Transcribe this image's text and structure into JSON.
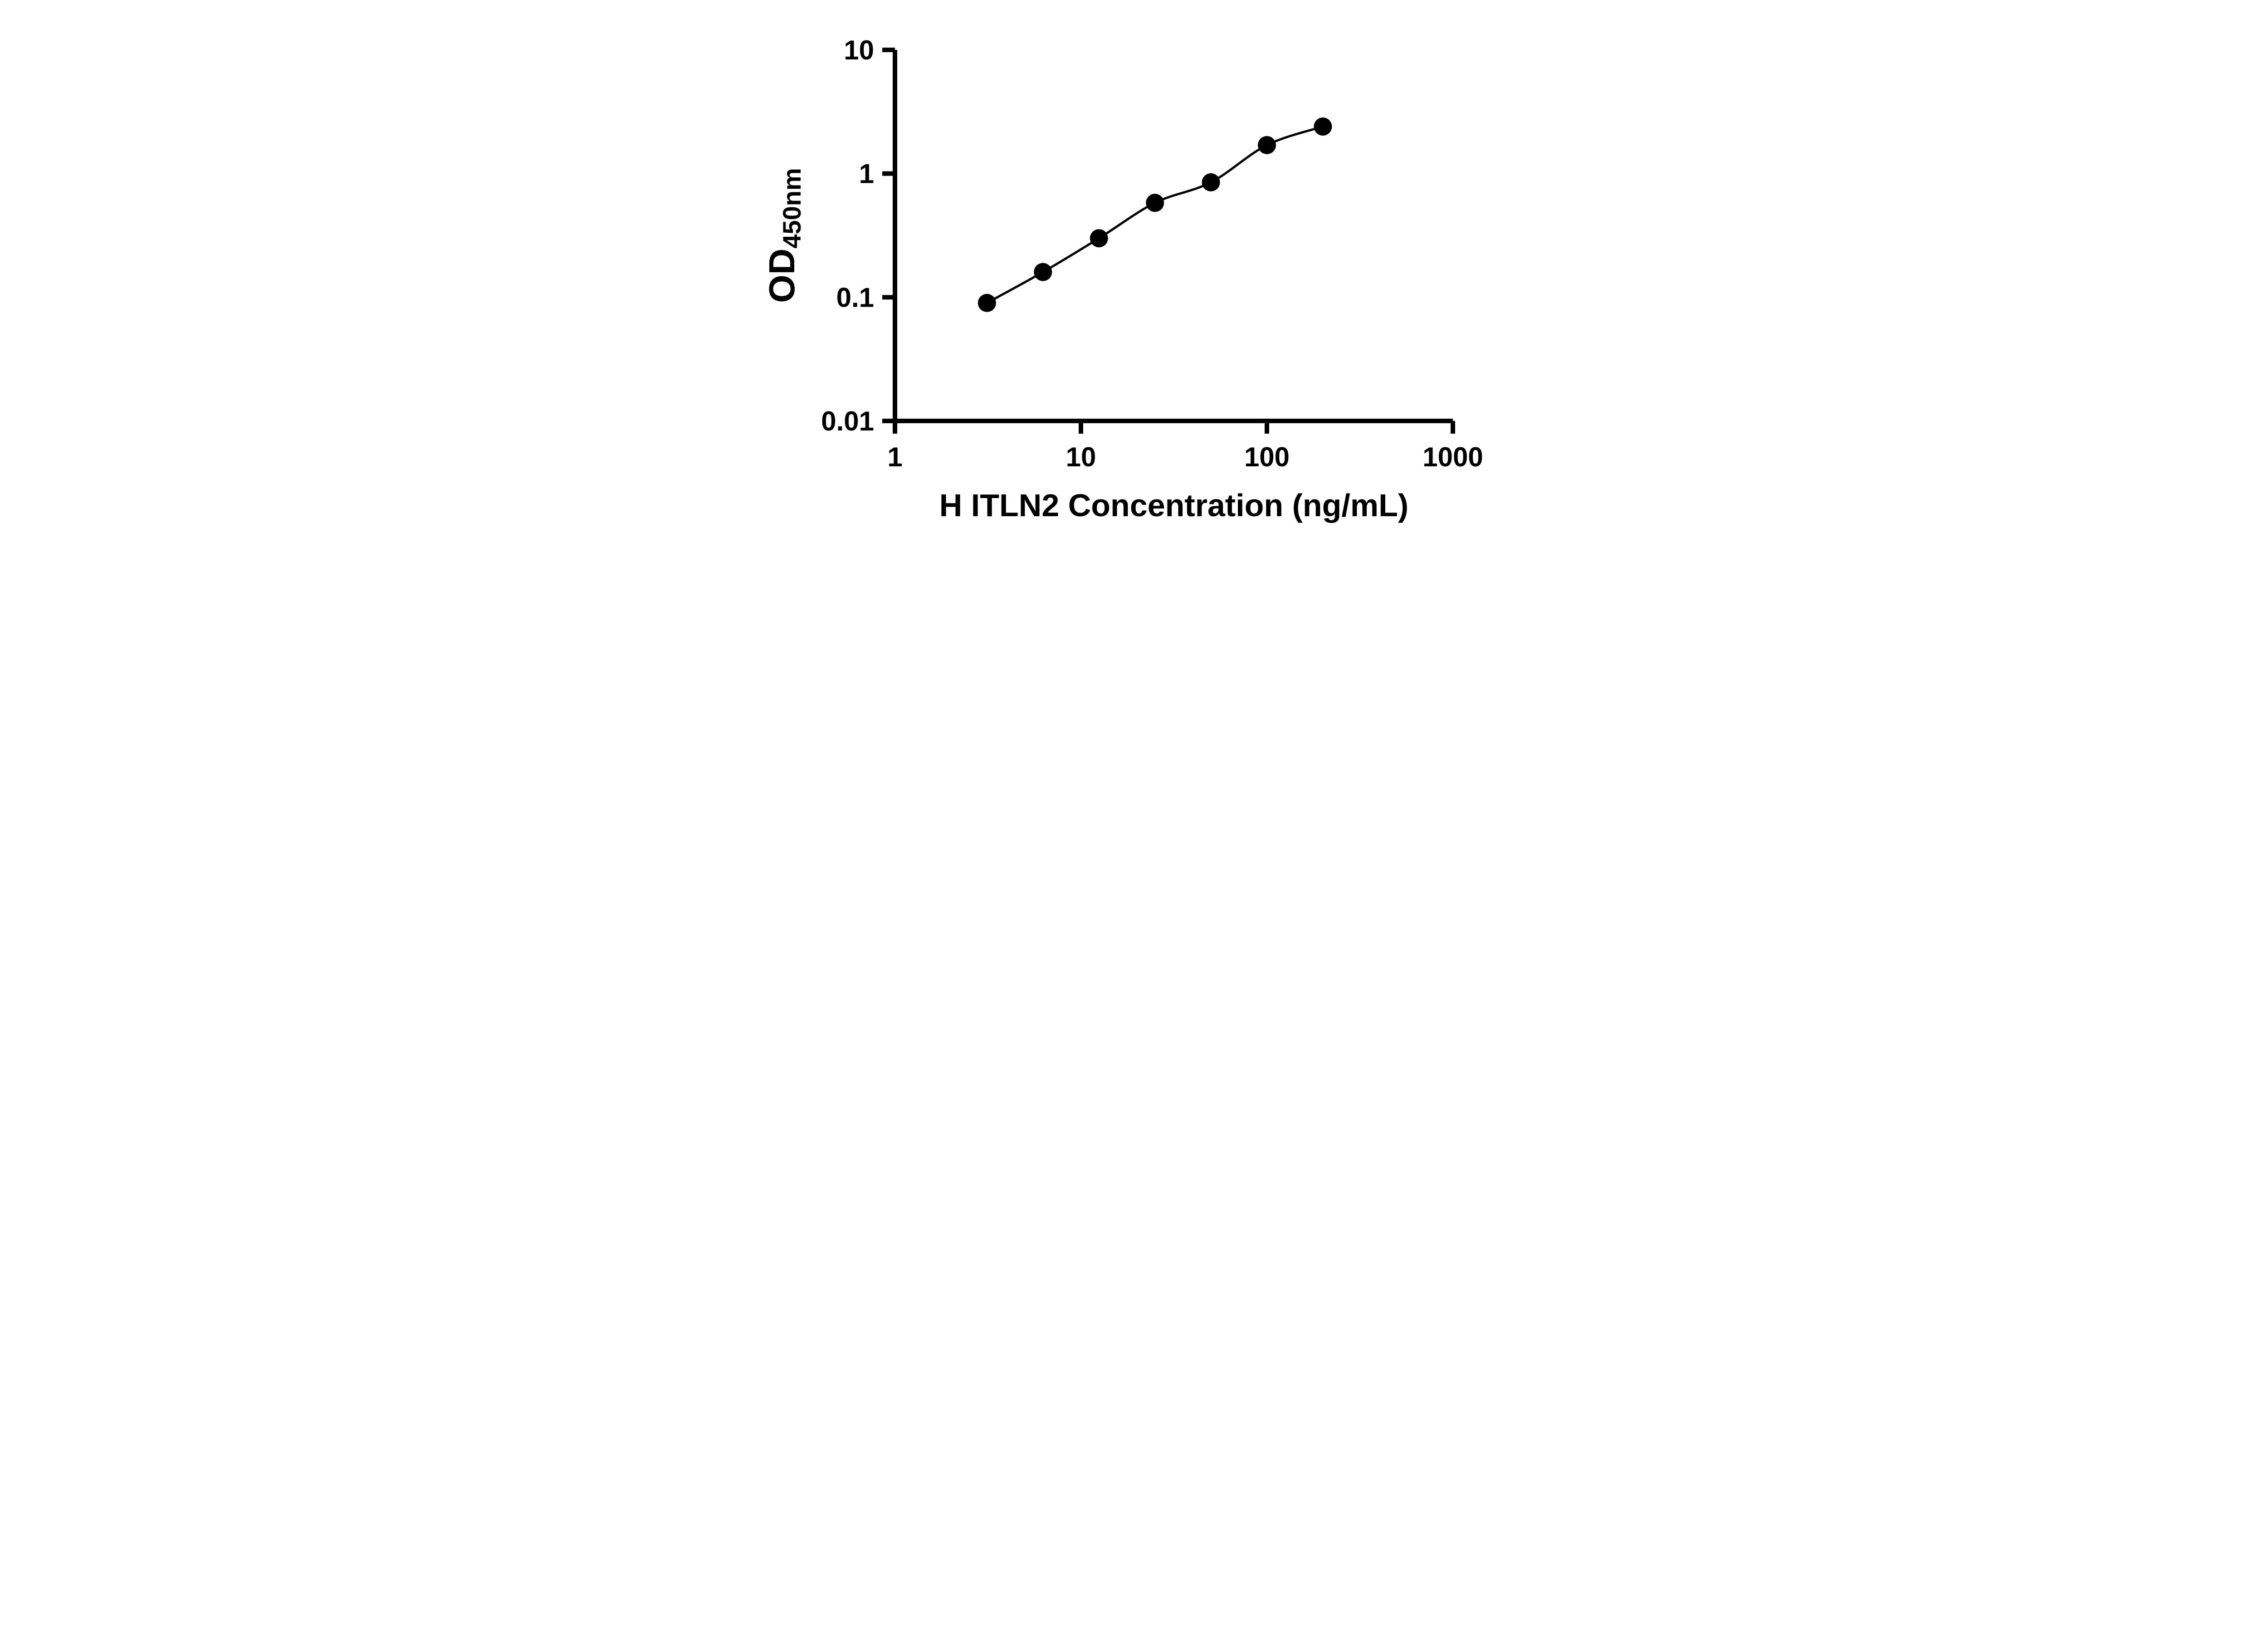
{
  "figure": {
    "background_color": "#ffffff"
  },
  "chart_data": {
    "type": "scatter",
    "title": "",
    "xlabel": "H ITLN2 Concentration (ng/mL)",
    "ylabel": "OD",
    "ylabel_sub": "450nm",
    "xscale": "log",
    "yscale": "log",
    "xlim": [
      1,
      1000
    ],
    "ylim": [
      0.01,
      10
    ],
    "x_ticks": [
      1,
      10,
      100,
      1000
    ],
    "y_ticks": [
      0.01,
      0.1,
      1,
      10
    ],
    "x": [
      3.125,
      6.25,
      12.5,
      25,
      50,
      100,
      200
    ],
    "y": [
      0.09,
      0.16,
      0.3,
      0.58,
      0.85,
      1.7,
      2.4
    ],
    "curve": "smooth",
    "marker_color": "#000000",
    "line_color": "#000000",
    "axis_color": "#000000",
    "legend": "none",
    "grid": "off"
  }
}
